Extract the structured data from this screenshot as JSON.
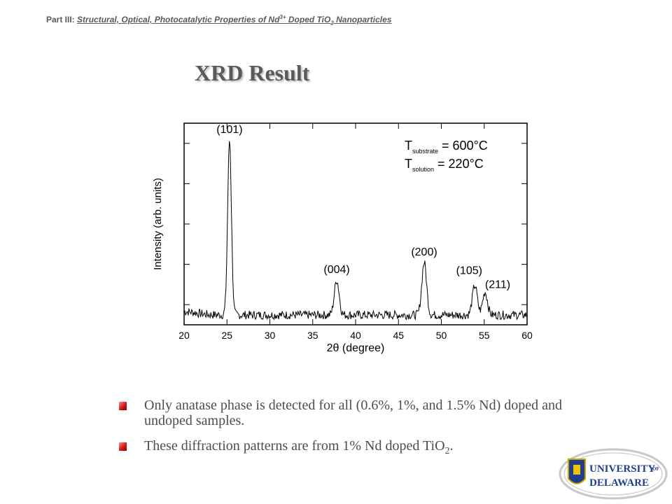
{
  "header": {
    "label": "Part III:",
    "topic_prefix": "Structural, Optical, Photocatalytic Properties of Nd",
    "topic_sup": "3+",
    "topic_mid": " Doped TiO",
    "topic_sub": "2",
    "topic_suffix": " Nanoparticles"
  },
  "title": "XRD Result",
  "chart_data": {
    "type": "line",
    "xlabel": "2θ (degree)",
    "ylabel": "Intensity (arb. units)",
    "xlim": [
      20,
      60
    ],
    "xticks": [
      "20",
      "25",
      "30",
      "35",
      "40",
      "45",
      "50",
      "55",
      "60"
    ],
    "peaks": [
      {
        "label": "(101)",
        "x": 25.3,
        "intensity": 1.0
      },
      {
        "label": "(004)",
        "x": 37.8,
        "intensity": 0.2
      },
      {
        "label": "(200)",
        "x": 48.0,
        "intensity": 0.3
      },
      {
        "label": "(105)",
        "x": 53.9,
        "intensity": 0.17
      },
      {
        "label": "(211)",
        "x": 55.1,
        "intensity": 0.13
      }
    ],
    "annotations": [
      {
        "main": "T",
        "sub": "substrate",
        "rest": " = 600°C"
      },
      {
        "main": "T",
        "sub": "solution",
        "rest": " = 220°C"
      }
    ]
  },
  "bullets": [
    {
      "text": "Only anatase phase is detected for all (0.6%, 1%, and 1.5% Nd) doped and undoped samples."
    },
    {
      "text": "These diffraction patterns are from 1% Nd doped TiO",
      "sub": "2",
      "suffix": "."
    }
  ],
  "logo": {
    "line1": "UNIVERSITY",
    "of": "OF",
    "line2": "DELAWARE"
  }
}
